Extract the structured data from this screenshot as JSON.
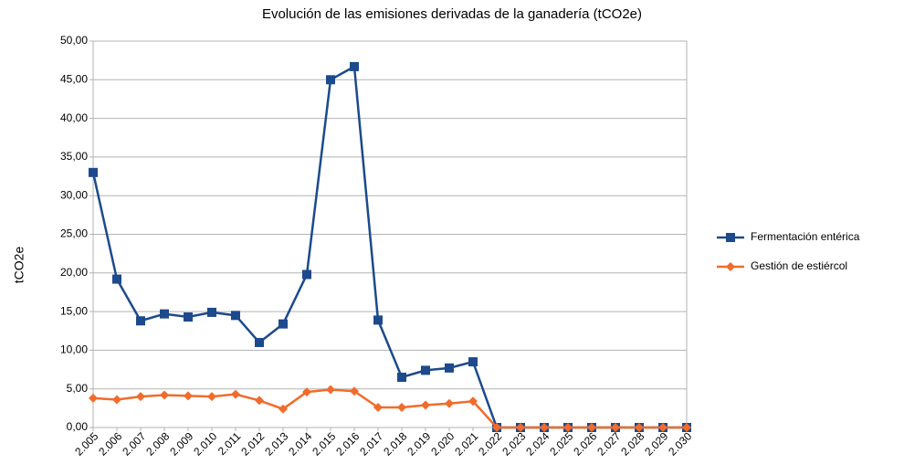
{
  "chart_data": {
    "type": "line",
    "title": "Evolución de las emisiones derivadas de la ganadería (tCO2e)",
    "y_label": "tCO2e",
    "categories": [
      "2.005",
      "2.006",
      "2.007",
      "2.008",
      "2.009",
      "2.010",
      "2.011",
      "2.012",
      "2.013",
      "2.014",
      "2.015",
      "2.016",
      "2.017",
      "2.018",
      "2.019",
      "2.020",
      "2.021",
      "2.022",
      "2.023",
      "2.024",
      "2.025",
      "2.026",
      "2.027",
      "2.028",
      "2.029",
      "2.030"
    ],
    "series": [
      {
        "name": "Fermentación entérica",
        "color": "#1c4a8c",
        "marker": "square",
        "values": [
          33.0,
          19.2,
          13.8,
          14.7,
          14.3,
          14.9,
          14.5,
          11.0,
          13.4,
          19.8,
          45.0,
          46.7,
          13.9,
          6.5,
          7.4,
          7.7,
          8.5,
          0,
          0,
          0,
          0,
          0,
          0,
          0,
          0,
          0
        ]
      },
      {
        "name": "Gestión de estiércol",
        "color": "#f26b2b",
        "marker": "diamond",
        "values": [
          3.8,
          3.6,
          4.0,
          4.2,
          4.1,
          4.0,
          4.3,
          3.5,
          2.4,
          4.6,
          4.9,
          4.7,
          2.6,
          2.6,
          2.9,
          3.1,
          3.4,
          0,
          0,
          0,
          0,
          0,
          0,
          0,
          0,
          0
        ]
      }
    ],
    "ylim": [
      0,
      50
    ],
    "yticks": [
      {
        "value": 0,
        "label": "0,00"
      },
      {
        "value": 5,
        "label": "5,00"
      },
      {
        "value": 10,
        "label": "10,00"
      },
      {
        "value": 15,
        "label": "15,00"
      },
      {
        "value": 20,
        "label": "20,00"
      },
      {
        "value": 25,
        "label": "25,00"
      },
      {
        "value": 30,
        "label": "30,00"
      },
      {
        "value": 35,
        "label": "35,00"
      },
      {
        "value": 40,
        "label": "40,00"
      },
      {
        "value": 45,
        "label": "45,00"
      },
      {
        "value": 50,
        "label": "50,00"
      }
    ],
    "grid": true
  }
}
